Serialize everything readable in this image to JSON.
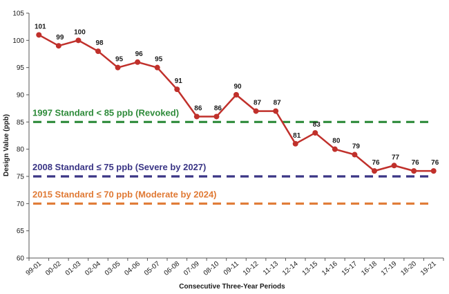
{
  "chart_data": {
    "type": "line",
    "xlabel": "Consecutive Three-Year Periods",
    "ylabel": "Design Value (ppb)",
    "ylim": [
      60,
      105
    ],
    "yticks": [
      60,
      65,
      70,
      75,
      80,
      85,
      90,
      95,
      100,
      105
    ],
    "grid": false,
    "categories": [
      "99-01",
      "00-02",
      "01-03",
      "02-04",
      "03-05",
      "04-06",
      "05-07",
      "06-08",
      "07-09",
      "08-10",
      "09-11",
      "10-12",
      "11-13",
      "12-14",
      "13-15",
      "14-16",
      "15-17",
      "16-18",
      "17-19",
      "18-20",
      "19-21"
    ],
    "series": [
      {
        "values": [
          101,
          99,
          100,
          98,
          95,
          96,
          95,
          91,
          86,
          86,
          90,
          87,
          87,
          81,
          83,
          80,
          79,
          76,
          77,
          76,
          76
        ],
        "color": "#c0302b"
      }
    ],
    "reference_lines": [
      {
        "label": "1997 Standard < 85 ppb (Revoked)",
        "value": 85,
        "color": "#2e8b3a",
        "style": "dashed"
      },
      {
        "label": "2008 Standard ≤ 75 ppb (Severe by 2027)",
        "value": 75,
        "color": "#3a3585",
        "style": "dashed"
      },
      {
        "label": "2015 Standard ≤ 70 ppb (Moderate by 2024)",
        "value": 70,
        "color": "#e07a35",
        "style": "dashed"
      }
    ]
  }
}
